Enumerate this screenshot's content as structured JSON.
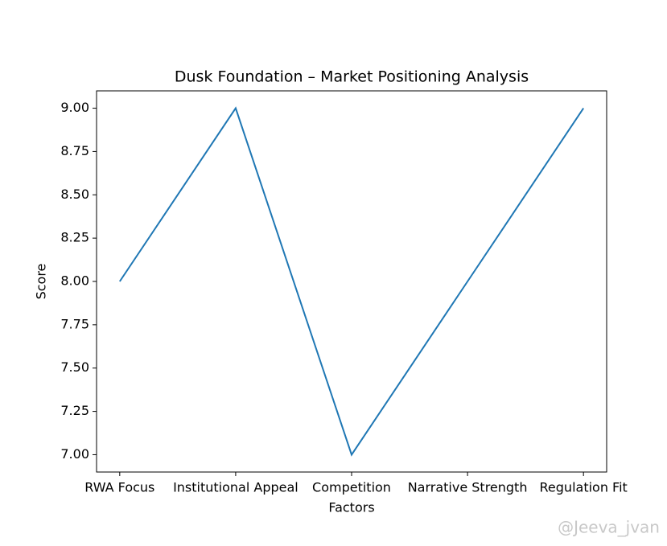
{
  "chart_data": {
    "type": "line",
    "title": "Dusk Foundation – Market Positioning Analysis",
    "x_label": "Factors",
    "y_label": "Score",
    "categories": [
      "RWA Focus",
      "Institutional Appeal",
      "Competition",
      "Narrative Strength",
      "Regulation Fit"
    ],
    "series": [
      {
        "name": "Score",
        "color": "#1f77b4",
        "values": [
          8,
          9,
          7,
          8,
          9
        ]
      }
    ],
    "ylim": [
      6.9,
      9.1
    ],
    "yticks": [
      {
        "value": 7,
        "label": "7.00"
      },
      {
        "value": 7.25,
        "label": "7.25"
      },
      {
        "value": 7.5,
        "label": "7.50"
      },
      {
        "value": 7.75,
        "label": "7.75"
      },
      {
        "value": 8,
        "label": "8.00"
      },
      {
        "value": 8.25,
        "label": "8.25"
      },
      {
        "value": 8.5,
        "label": "8.50"
      },
      {
        "value": 8.75,
        "label": "8.75"
      },
      {
        "value": 9,
        "label": "9.00"
      }
    ],
    "grid": false,
    "annotation": "@Jeeva_jvan"
  }
}
